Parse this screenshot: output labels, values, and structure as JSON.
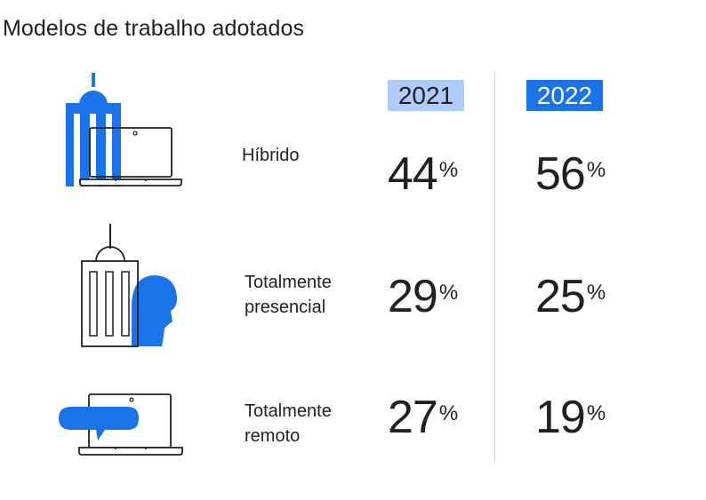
{
  "title": "Modelos de trabalho adotados",
  "colors": {
    "blue": "#1a73e8",
    "light_blue": "#aecbfa",
    "ink": "#202124",
    "divider": "#d9d9d9"
  },
  "chart_data": {
    "type": "table",
    "title": "Modelos de trabalho adotados",
    "columns": [
      "2021",
      "2022"
    ],
    "unit": "%",
    "rows": [
      {
        "label": [
          "Híbrido"
        ],
        "values": [
          44,
          56
        ],
        "icon": "office-building-laptop-icon"
      },
      {
        "label": [
          "Totalmente",
          "presencial"
        ],
        "values": [
          29,
          25
        ],
        "icon": "office-building-person-icon"
      },
      {
        "label": [
          "Totalmente",
          "remoto"
        ],
        "values": [
          27,
          19
        ],
        "icon": "laptop-chat-icon"
      }
    ]
  }
}
